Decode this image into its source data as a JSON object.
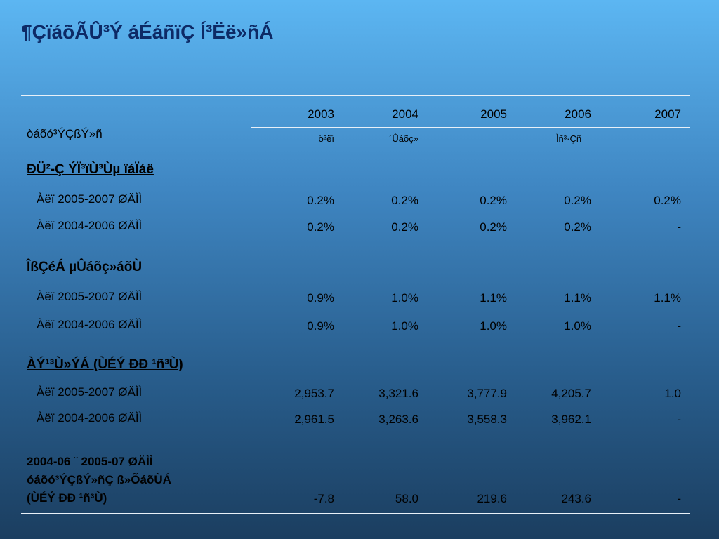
{
  "title": "¶ÇïáõÃÛ³Ý áÉáñïÇ Í³Ëë»ñÁ",
  "table": {
    "header": {
      "label": "òáõó³ÝÇßÝ»ñ",
      "years": [
        "2003",
        "2004",
        "2005",
        "2006",
        "2007"
      ],
      "subheaders": [
        "ö³ëï",
        "´Ûáõç»",
        "Ìñ³·Çñ"
      ]
    },
    "sections": [
      {
        "title": "ÐÜ²-Ç ÝÏ³ïÙ³Ùµ ïáÏáë",
        "rows": [
          {
            "label": "Àëï 2005-2007 ØÄÌÌ",
            "values": [
              "0.2%",
              "0.2%",
              "0.2%",
              "0.2%",
              "0.2%"
            ]
          },
          {
            "label": "Àëï 2004-2006 ØÄÌÌ",
            "values": [
              "0.2%",
              "0.2%",
              "0.2%",
              "0.2%",
              "-"
            ]
          }
        ]
      },
      {
        "title": "ÎßÇéÁ µÛáõç»áõÙ",
        "rows": [
          {
            "label": "Àëï 2005-2007 ØÄÌÌ",
            "values": [
              "0.9%",
              "1.0%",
              "1.1%",
              "1.1%",
              "1.1%"
            ]
          },
          {
            "label": "Àëï 2004-2006 ØÄÌÌ",
            "values": [
              "0.9%",
              "1.0%",
              "1.0%",
              "1.0%",
              "-"
            ]
          }
        ]
      },
      {
        "title": "ÀÝ¹³Ù»ÝÁ (ÙÉÝ ÐÐ ¹ñ³Ù)",
        "rows": [
          {
            "label": "Àëï 2005-2007 ØÄÌÌ",
            "values": [
              "2,953.7",
              "3,321.6",
              "3,777.9",
              "4,205.7",
              "1.0"
            ]
          },
          {
            "label": "Àëï 2004-2006 ØÄÌÌ",
            "values": [
              "2,961.5",
              "3,263.6",
              "3,558.3",
              "3,962.1",
              "-"
            ]
          }
        ]
      }
    ],
    "total": {
      "label_lines": [
        "2004-06 ¨ 2005-07 ØÄÌÌ",
        "óáõó³ÝÇßÝ»ñÇ ß»ÕáõÙÁ",
        "(ÙÉÝ ÐÐ ¹ñ³Ù)"
      ],
      "values": [
        "-7.8",
        "58.0",
        "219.6",
        "243.6",
        "-"
      ]
    }
  }
}
